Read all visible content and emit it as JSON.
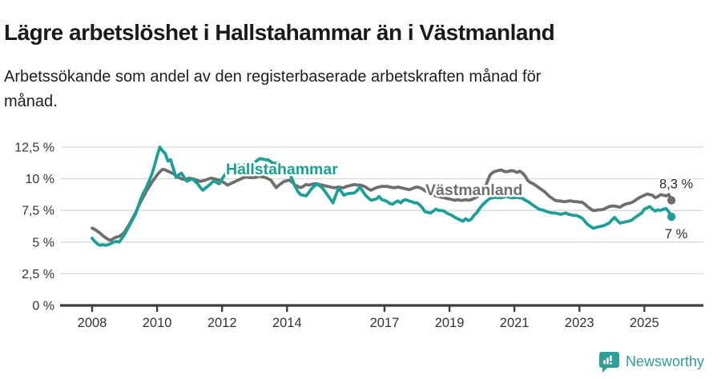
{
  "title": "Lägre arbetslöshet i Hallstahammar än i Västmanland",
  "subtitle_line1": "Arbetssökande som andel av den registerbaserade arbetskraften månad för",
  "subtitle_line2": "månad.",
  "footer": {
    "brand": "Newsworthy",
    "logo_icon": "speech-bubble-bar-chart-icon"
  },
  "colors": {
    "hallstahammar": "#1aa098",
    "vastmanland": "#6e6e6e",
    "axis": "#3d3d3d",
    "grid": "#d9d9d9",
    "tick_text": "#333333",
    "end_label_text": "#2a2a2a",
    "brand_teal": "#2f9e96"
  },
  "chart_data": {
    "type": "line",
    "title": "Lägre arbetslöshet i Hallstahammar än i Västmanland",
    "subtitle": "Arbetssökande som andel av den registerbaserade arbetskraften månad för månad.",
    "unit": "%",
    "frequency": "monthly",
    "x_start_year": 2008,
    "x_tick_years": [
      2008,
      2010,
      2012,
      2014,
      2017,
      2019,
      2021,
      2023,
      2025
    ],
    "y_ticks": [
      {
        "value": 0,
        "label": "0 %"
      },
      {
        "value": 2.5,
        "label": "2,5 %"
      },
      {
        "value": 5,
        "label": "5 %"
      },
      {
        "value": 7.5,
        "label": "7,5 %"
      },
      {
        "value": 10,
        "label": "10 %"
      },
      {
        "value": 12.5,
        "label": "12,5 %"
      }
    ],
    "ylim": [
      0,
      13.2
    ],
    "grid": true,
    "legend_position": "inline-labels",
    "series": [
      {
        "name": "Västmanland",
        "color": "#6e6e6e",
        "end_label": "8,3 %",
        "end_value": 8.3,
        "values": [
          6.1,
          6.0,
          5.85,
          5.7,
          5.5,
          5.35,
          5.2,
          5.15,
          5.3,
          5.4,
          5.45,
          5.6,
          5.8,
          6.15,
          6.5,
          6.9,
          7.3,
          7.75,
          8.2,
          8.6,
          9.0,
          9.35,
          9.7,
          10.0,
          10.3,
          10.55,
          10.75,
          10.7,
          10.6,
          10.5,
          10.4,
          10.25,
          10.1,
          10.0,
          9.95,
          10.0,
          10.05,
          10.0,
          9.95,
          9.85,
          9.8,
          9.85,
          9.9,
          10.0,
          10.05,
          10.0,
          9.95,
          9.9,
          9.8,
          9.65,
          9.5,
          9.6,
          9.7,
          9.8,
          9.9,
          10.0,
          10.1,
          10.15,
          10.1,
          10.1,
          10.1,
          10.15,
          10.2,
          10.15,
          10.1,
          10.0,
          9.9,
          9.6,
          9.3,
          9.5,
          9.65,
          9.8,
          9.85,
          9.9,
          9.7,
          9.5,
          9.4,
          9.3,
          9.4,
          9.55,
          9.5,
          9.55,
          9.6,
          9.6,
          9.55,
          9.5,
          9.45,
          9.4,
          9.35,
          9.3,
          9.3,
          9.35,
          9.3,
          9.3,
          9.4,
          9.45,
          9.5,
          9.55,
          9.5,
          9.5,
          9.45,
          9.35,
          9.2,
          9.1,
          9.2,
          9.3,
          9.35,
          9.4,
          9.4,
          9.4,
          9.35,
          9.3,
          9.3,
          9.35,
          9.3,
          9.25,
          9.2,
          9.15,
          9.2,
          9.3,
          9.35,
          9.3,
          9.2,
          9.05,
          8.95,
          8.85,
          8.75,
          8.65,
          8.6,
          8.55,
          8.5,
          8.45,
          8.4,
          8.35,
          8.3,
          8.35,
          8.3,
          8.3,
          8.35,
          8.3,
          8.35,
          8.45,
          8.55,
          8.7,
          8.9,
          9.2,
          9.8,
          10.3,
          10.5,
          10.6,
          10.65,
          10.7,
          10.6,
          10.55,
          10.6,
          10.65,
          10.6,
          10.5,
          10.6,
          10.45,
          10.2,
          9.85,
          9.7,
          9.6,
          9.45,
          9.3,
          9.15,
          9.0,
          8.8,
          8.6,
          8.45,
          8.3,
          8.25,
          8.25,
          8.2,
          8.2,
          8.25,
          8.25,
          8.2,
          8.2,
          8.15,
          8.15,
          8.0,
          7.8,
          7.65,
          7.5,
          7.5,
          7.55,
          7.55,
          7.6,
          7.7,
          7.8,
          7.85,
          7.85,
          7.8,
          7.75,
          7.9,
          8.0,
          8.05,
          8.1,
          8.2,
          8.35,
          8.5,
          8.6,
          8.7,
          8.8,
          8.75,
          8.7,
          8.5,
          8.6,
          8.75,
          8.7,
          8.65,
          8.75,
          8.3
        ]
      },
      {
        "name": "Hallstahammar",
        "color": "#1aa098",
        "end_label": "7 %",
        "end_value": 7.0,
        "values": [
          5.3,
          5.05,
          4.85,
          4.75,
          4.8,
          4.75,
          4.8,
          4.9,
          5.0,
          5.05,
          5.0,
          5.3,
          5.6,
          6.0,
          6.4,
          6.8,
          7.2,
          7.8,
          8.4,
          8.9,
          9.3,
          9.8,
          10.3,
          11.0,
          11.8,
          12.5,
          12.2,
          12.0,
          11.4,
          11.5,
          10.8,
          10.1,
          10.3,
          10.45,
          10.1,
          9.8,
          9.9,
          10.0,
          9.8,
          9.6,
          9.3,
          9.1,
          9.3,
          9.45,
          9.65,
          9.85,
          9.7,
          9.6,
          10.0,
          10.3,
          10.6,
          10.9,
          11.0,
          11.2,
          11.1,
          11.0,
          11.1,
          11.0,
          11.15,
          11.2,
          11.3,
          11.45,
          11.6,
          11.55,
          11.5,
          11.5,
          11.35,
          11.2,
          11.25,
          11.3,
          11.05,
          10.8,
          10.6,
          10.4,
          9.9,
          9.4,
          9.0,
          8.75,
          8.7,
          8.65,
          8.9,
          9.2,
          9.4,
          9.6,
          9.45,
          9.3,
          9.0,
          8.7,
          8.4,
          8.1,
          8.7,
          9.25,
          9.0,
          8.7,
          8.8,
          8.85,
          8.85,
          8.9,
          9.1,
          9.35,
          9.0,
          8.7,
          8.5,
          8.3,
          8.35,
          8.4,
          8.6,
          8.35,
          8.3,
          8.2,
          8.05,
          8.0,
          8.15,
          8.25,
          8.1,
          8.3,
          8.35,
          8.25,
          8.2,
          8.1,
          8.1,
          7.95,
          7.7,
          7.4,
          7.35,
          7.3,
          7.45,
          7.6,
          7.5,
          7.5,
          7.45,
          7.3,
          7.2,
          7.1,
          6.95,
          6.85,
          6.75,
          6.65,
          6.85,
          6.7,
          6.8,
          7.1,
          7.3,
          7.6,
          7.9,
          8.1,
          8.3,
          8.45,
          8.5,
          8.55,
          8.5,
          8.5,
          8.55,
          8.6,
          8.55,
          8.5,
          8.5,
          8.55,
          8.5,
          8.45,
          8.3,
          8.2,
          8.05,
          7.9,
          7.75,
          7.6,
          7.55,
          7.5,
          7.4,
          7.35,
          7.3,
          7.3,
          7.25,
          7.2,
          7.25,
          7.3,
          7.2,
          7.15,
          7.1,
          7.1,
          7.0,
          6.9,
          6.65,
          6.4,
          6.25,
          6.1,
          6.15,
          6.2,
          6.25,
          6.3,
          6.4,
          6.5,
          6.75,
          6.95,
          6.7,
          6.5,
          6.55,
          6.6,
          6.65,
          6.7,
          6.85,
          7.0,
          7.15,
          7.3,
          7.6,
          7.7,
          7.8,
          7.6,
          7.45,
          7.55,
          7.5,
          7.6,
          7.65,
          7.4,
          7.0
        ]
      }
    ]
  }
}
